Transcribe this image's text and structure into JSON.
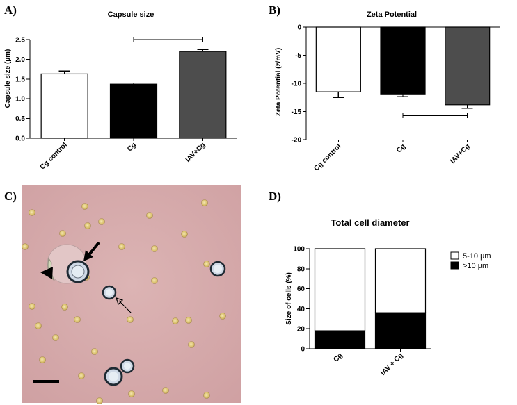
{
  "panels": {
    "a": "A)",
    "b": "B)",
    "c": "C)",
    "d": "D)"
  },
  "chart_data": [
    {
      "id": "A",
      "type": "bar",
      "title": "Capsule size",
      "ylabel": "Capsule size (µm)",
      "xlabel": "",
      "categories": [
        "Cg control",
        "Cg",
        "IAV+Cg"
      ],
      "values": [
        1.63,
        1.37,
        2.2
      ],
      "errors": [
        0.07,
        0.03,
        0.05
      ],
      "colors": [
        "#ffffff",
        "#000000",
        "#4d4d4d"
      ],
      "ylim": [
        0,
        2.5
      ],
      "yticks": [
        "0.0",
        "0.5",
        "1.0",
        "1.5",
        "2.0",
        "2.5"
      ],
      "significance_bracket": {
        "from": "Cg",
        "to": "IAV+Cg",
        "y": 2.5
      },
      "grid": false
    },
    {
      "id": "B",
      "type": "bar",
      "title": "Zeta Potential",
      "ylabel": "Zeta Potential (z/mV)",
      "xlabel": "",
      "categories": [
        "Cg control",
        "Cg",
        "IAV+Cg"
      ],
      "values": [
        -11.5,
        -12.0,
        -13.8
      ],
      "errors": [
        1.0,
        0.4,
        0.6
      ],
      "colors": [
        "#ffffff",
        "#000000",
        "#4d4d4d"
      ],
      "ylim": [
        -20,
        0
      ],
      "yticks": [
        "0",
        "-5",
        "-10",
        "-15",
        "-20"
      ],
      "significance_bracket": {
        "from": "Cg",
        "to": "IAV+Cg",
        "y": -15.7
      },
      "grid": false
    },
    {
      "id": "D",
      "type": "bar",
      "stacked": true,
      "title": "Total cell diameter",
      "ylabel": "Size of cells (%)",
      "xlabel": "",
      "categories": [
        "Cg",
        "IAV + Cg"
      ],
      "series": [
        {
          "name": ">10 µm",
          "values": [
            18,
            36
          ],
          "color": "#000000"
        },
        {
          "name": "5-10 µm",
          "values": [
            82,
            64
          ],
          "color": "#ffffff"
        }
      ],
      "ylim": [
        0,
        100
      ],
      "yticks": [
        "0",
        "20",
        "40",
        "60",
        "80",
        "100"
      ],
      "legend_position": "top-right",
      "grid": false
    }
  ],
  "micrograph": {
    "icons": [
      "capsule-cell-icon",
      "arrowhead-icon",
      "thick-arrow-icon",
      "thin-arrow-icon",
      "scale-bar-icon"
    ],
    "background": "#d6aaaa"
  }
}
